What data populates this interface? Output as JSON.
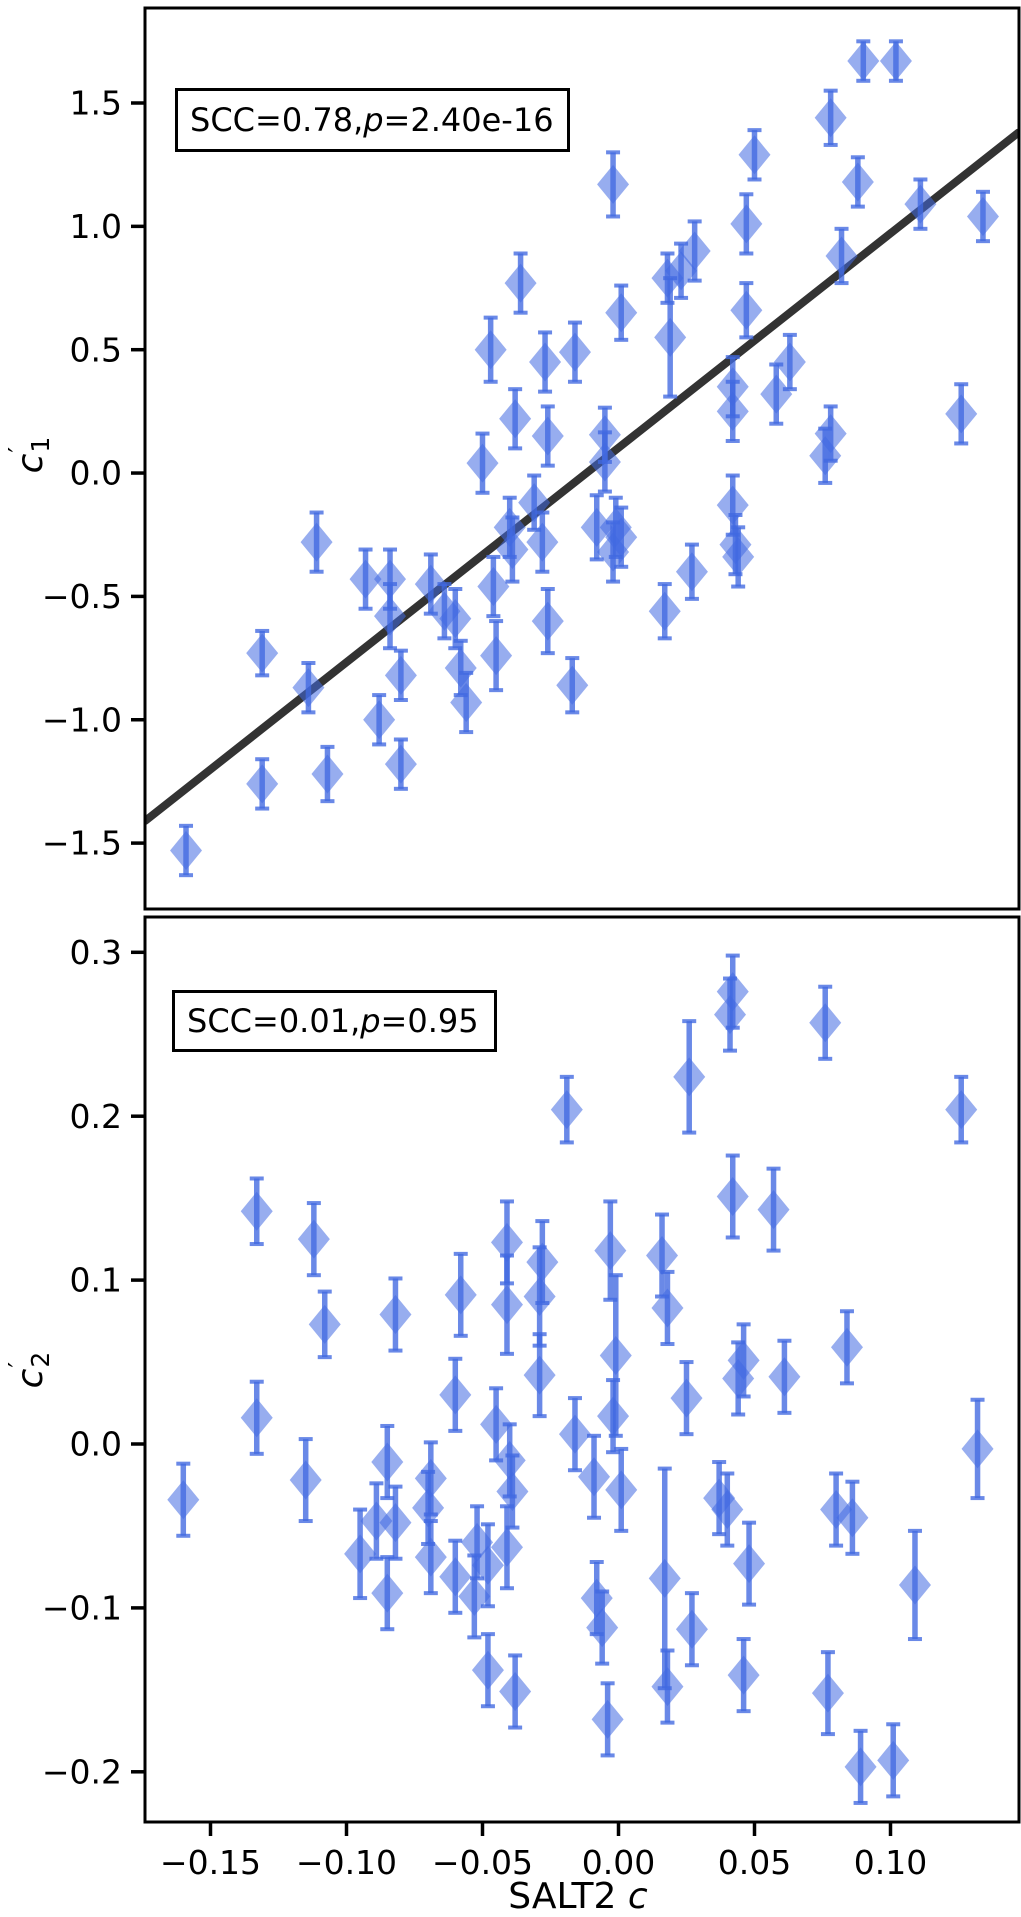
{
  "figure": {
    "background": "#ffffff",
    "marker_color": "#4169e1",
    "marker_fill_opacity": 0.55,
    "errorbar_color": "#4169e1",
    "errorbar_opacity": 0.78,
    "fit_line_color": "#333333",
    "axis_color": "#000000",
    "xlabel": {
      "prefix": "SALT2 ",
      "italic": "c"
    }
  },
  "chart_data": [
    {
      "type": "scatter",
      "panel": "top",
      "ylabel": {
        "base": "c",
        "prime": "′",
        "sub": "1"
      },
      "annotation": {
        "scc": "SCC=0.78, ",
        "p_italic": "p",
        "p_value": "=2.40e-16"
      },
      "xlabel": "SALT2 c",
      "xlim": [
        -0.174,
        0.147
      ],
      "ylim": [
        -1.77,
        1.89
      ],
      "grid": false,
      "yticks": {
        "values": [
          1.5,
          1.0,
          0.5,
          0.0,
          -0.5,
          -1.0,
          -1.5
        ],
        "labels": [
          "1.5",
          "1.0",
          "0.5",
          "0.0",
          "−0.5",
          "−1.0",
          "−1.5"
        ]
      },
      "fit_line": {
        "x": [
          -0.174,
          0.147
        ],
        "y": [
          -1.41,
          1.38
        ]
      },
      "points": [
        [
          -0.159,
          -1.53,
          0.1
        ],
        [
          -0.131,
          -0.73,
          0.09
        ],
        [
          -0.131,
          -1.26,
          0.1
        ],
        [
          -0.114,
          -0.87,
          0.1
        ],
        [
          -0.111,
          -0.28,
          0.12
        ],
        [
          -0.107,
          -1.22,
          0.11
        ],
        [
          -0.093,
          -0.43,
          0.12
        ],
        [
          -0.088,
          -1.0,
          0.1
        ],
        [
          -0.084,
          -0.43,
          0.12
        ],
        [
          -0.084,
          -0.58,
          0.13
        ],
        [
          -0.08,
          -0.82,
          0.1
        ],
        [
          -0.08,
          -1.18,
          0.1
        ],
        [
          -0.069,
          -0.45,
          0.12
        ],
        [
          -0.064,
          -0.56,
          0.11
        ],
        [
          -0.06,
          -0.59,
          0.12
        ],
        [
          -0.058,
          -0.79,
          0.11
        ],
        [
          -0.056,
          -0.93,
          0.12
        ],
        [
          -0.05,
          0.04,
          0.12
        ],
        [
          -0.047,
          0.5,
          0.13
        ],
        [
          -0.046,
          -0.46,
          0.12
        ],
        [
          -0.045,
          -0.74,
          0.14
        ],
        [
          -0.04,
          -0.22,
          0.12
        ],
        [
          -0.039,
          -0.31,
          0.13
        ],
        [
          -0.038,
          0.22,
          0.12
        ],
        [
          -0.036,
          0.77,
          0.12
        ],
        [
          -0.031,
          -0.12,
          0.11
        ],
        [
          -0.028,
          -0.28,
          0.12
        ],
        [
          -0.027,
          0.45,
          0.12
        ],
        [
          -0.026,
          0.15,
          0.12
        ],
        [
          -0.026,
          -0.6,
          0.13
        ],
        [
          -0.017,
          -0.86,
          0.11
        ],
        [
          -0.016,
          0.49,
          0.12
        ],
        [
          -0.008,
          -0.22,
          0.13
        ],
        [
          -0.005,
          0.155,
          0.11
        ],
        [
          -0.005,
          0.045,
          0.12
        ],
        [
          -0.002,
          1.17,
          0.13
        ],
        [
          -0.002,
          -0.32,
          0.12
        ],
        [
          -0.001,
          -0.22,
          0.12
        ],
        [
          0.001,
          0.65,
          0.11
        ],
        [
          0.001,
          -0.26,
          0.12
        ],
        [
          0.017,
          -0.56,
          0.11
        ],
        [
          0.018,
          0.79,
          0.1
        ],
        [
          0.019,
          0.55,
          0.24
        ],
        [
          0.023,
          0.82,
          0.11
        ],
        [
          0.027,
          -0.4,
          0.11
        ],
        [
          0.028,
          0.9,
          0.12
        ],
        [
          0.042,
          -0.13,
          0.12
        ],
        [
          0.042,
          0.25,
          0.12
        ],
        [
          0.042,
          0.35,
          0.12
        ],
        [
          0.043,
          -0.29,
          0.12
        ],
        [
          0.044,
          -0.34,
          0.12
        ],
        [
          0.047,
          1.01,
          0.12
        ],
        [
          0.047,
          0.66,
          0.11
        ],
        [
          0.05,
          1.29,
          0.1
        ],
        [
          0.058,
          0.32,
          0.12
        ],
        [
          0.063,
          0.45,
          0.11
        ],
        [
          0.076,
          0.07,
          0.11
        ],
        [
          0.078,
          1.44,
          0.11
        ],
        [
          0.078,
          0.16,
          0.11
        ],
        [
          0.082,
          0.88,
          0.11
        ],
        [
          0.088,
          1.18,
          0.1
        ],
        [
          0.09,
          1.67,
          0.08
        ],
        [
          0.102,
          1.67,
          0.08
        ],
        [
          0.111,
          1.09,
          0.1
        ],
        [
          0.126,
          0.24,
          0.12
        ],
        [
          0.134,
          1.04,
          0.1
        ]
      ]
    },
    {
      "type": "scatter",
      "panel": "bottom",
      "ylabel": {
        "base": "c",
        "prime": "′",
        "sub": "2"
      },
      "annotation": {
        "scc": "SCC=0.01, ",
        "p_italic": "p",
        "p_value": "=0.95"
      },
      "xlabel": "SALT2 c",
      "xlim": [
        -0.174,
        0.147
      ],
      "ylim": [
        -0.231,
        0.322
      ],
      "grid": false,
      "xticks": {
        "values": [
          -0.15,
          -0.1,
          -0.05,
          0.0,
          0.05,
          0.1
        ],
        "labels": [
          "−0.15",
          "−0.10",
          "−0.05",
          "0.00",
          "0.05",
          "0.10"
        ]
      },
      "yticks": {
        "values": [
          0.3,
          0.2,
          0.1,
          0.0,
          -0.1,
          -0.2
        ],
        "labels": [
          "0.3",
          "0.2",
          "0.1",
          "0.0",
          "−0.1",
          "−0.2"
        ]
      },
      "points": [
        [
          -0.16,
          -0.034,
          0.022
        ],
        [
          -0.133,
          0.142,
          0.02
        ],
        [
          -0.133,
          0.016,
          0.022
        ],
        [
          -0.115,
          -0.022,
          0.025
        ],
        [
          -0.112,
          0.125,
          0.022
        ],
        [
          -0.108,
          0.073,
          0.02
        ],
        [
          -0.095,
          -0.067,
          0.027
        ],
        [
          -0.089,
          -0.047,
          0.023
        ],
        [
          -0.085,
          -0.011,
          0.022
        ],
        [
          -0.085,
          -0.091,
          0.022
        ],
        [
          -0.082,
          0.079,
          0.022
        ],
        [
          -0.082,
          -0.048,
          0.022
        ],
        [
          -0.07,
          -0.039,
          0.022
        ],
        [
          -0.069,
          -0.021,
          0.022
        ],
        [
          -0.069,
          -0.069,
          0.022
        ],
        [
          -0.06,
          0.03,
          0.022
        ],
        [
          -0.06,
          -0.081,
          0.022
        ],
        [
          -0.058,
          0.091,
          0.025
        ],
        [
          -0.053,
          -0.093,
          0.025
        ],
        [
          -0.052,
          -0.06,
          0.022
        ],
        [
          -0.048,
          -0.074,
          0.025
        ],
        [
          -0.048,
          -0.138,
          0.022
        ],
        [
          -0.045,
          0.012,
          0.022
        ],
        [
          -0.041,
          0.123,
          0.025
        ],
        [
          -0.041,
          0.085,
          0.03
        ],
        [
          -0.041,
          -0.063,
          0.025
        ],
        [
          -0.04,
          -0.01,
          0.022
        ],
        [
          -0.039,
          -0.029,
          0.022
        ],
        [
          -0.038,
          -0.151,
          0.022
        ],
        [
          -0.029,
          0.09,
          0.03
        ],
        [
          -0.029,
          0.042,
          0.025
        ],
        [
          -0.028,
          0.111,
          0.025
        ],
        [
          -0.019,
          0.204,
          0.02
        ],
        [
          -0.016,
          0.006,
          0.022
        ],
        [
          -0.009,
          -0.02,
          0.025
        ],
        [
          -0.008,
          -0.094,
          0.022
        ],
        [
          -0.006,
          -0.112,
          0.022
        ],
        [
          -0.004,
          -0.168,
          0.022
        ],
        [
          -0.003,
          0.118,
          0.03
        ],
        [
          -0.001,
          0.054,
          0.049
        ],
        [
          -0.002,
          0.017,
          0.022
        ],
        [
          0.001,
          -0.028,
          0.025
        ],
        [
          0.016,
          0.115,
          0.025
        ],
        [
          0.017,
          -0.082,
          0.067
        ],
        [
          0.018,
          0.083,
          0.022
        ],
        [
          0.018,
          -0.148,
          0.022
        ],
        [
          0.026,
          0.224,
          0.034
        ],
        [
          0.025,
          0.028,
          0.022
        ],
        [
          0.027,
          -0.113,
          0.022
        ],
        [
          0.037,
          -0.033,
          0.022
        ],
        [
          0.04,
          -0.04,
          0.022
        ],
        [
          0.041,
          0.262,
          0.022
        ],
        [
          0.042,
          0.276,
          0.022
        ],
        [
          0.042,
          0.151,
          0.025
        ],
        [
          0.044,
          0.04,
          0.022
        ],
        [
          0.046,
          0.051,
          0.022
        ],
        [
          0.046,
          -0.141,
          0.022
        ],
        [
          0.048,
          -0.073,
          0.025
        ],
        [
          0.057,
          0.143,
          0.025
        ],
        [
          0.061,
          0.041,
          0.022
        ],
        [
          0.076,
          0.257,
          0.022
        ],
        [
          0.077,
          -0.152,
          0.025
        ],
        [
          0.08,
          -0.04,
          0.022
        ],
        [
          0.084,
          0.059,
          0.022
        ],
        [
          0.086,
          -0.045,
          0.022
        ],
        [
          0.089,
          -0.197,
          0.022
        ],
        [
          0.101,
          -0.193,
          0.022
        ],
        [
          0.109,
          -0.086,
          0.033
        ],
        [
          0.126,
          0.204,
          0.02
        ],
        [
          0.132,
          -0.003,
          0.03
        ]
      ]
    }
  ]
}
